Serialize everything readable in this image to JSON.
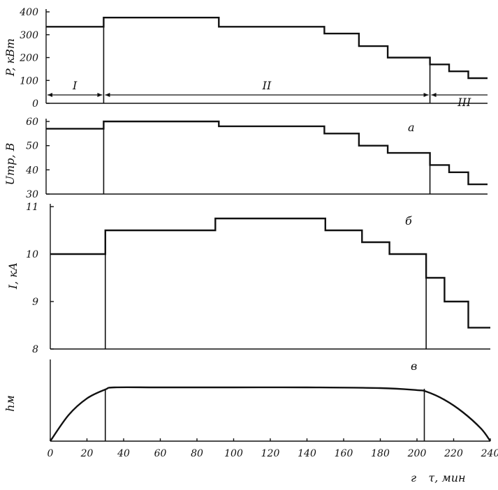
{
  "chart_data": [
    {
      "type": "line",
      "panel": "P",
      "ylabel": "P, кВт",
      "ylim": [
        0,
        400
      ],
      "yticks": [
        0,
        100,
        200,
        300,
        400
      ],
      "step_points": [
        [
          0,
          335
        ],
        [
          30,
          335
        ],
        [
          30,
          375
        ],
        [
          90,
          375
        ],
        [
          90,
          335
        ],
        [
          145,
          335
        ],
        [
          145,
          305
        ],
        [
          163,
          305
        ],
        [
          163,
          250
        ],
        [
          178,
          250
        ],
        [
          178,
          200
        ],
        [
          200,
          200
        ],
        [
          200,
          170
        ],
        [
          210,
          170
        ],
        [
          210,
          140
        ],
        [
          220,
          140
        ],
        [
          220,
          110
        ],
        [
          230,
          110
        ]
      ],
      "annotations": [
        "I",
        "II",
        "III"
      ]
    },
    {
      "type": "line",
      "panel": "U",
      "ylabel": "Uтр, В",
      "ylim": [
        30,
        60
      ],
      "yticks": [
        30,
        40,
        50,
        60
      ],
      "step_points": [
        [
          0,
          57
        ],
        [
          30,
          57
        ],
        [
          30,
          60
        ],
        [
          90,
          60
        ],
        [
          90,
          58
        ],
        [
          145,
          58
        ],
        [
          145,
          55
        ],
        [
          163,
          55
        ],
        [
          163,
          50
        ],
        [
          178,
          50
        ],
        [
          178,
          47
        ],
        [
          200,
          47
        ],
        [
          200,
          42
        ],
        [
          210,
          42
        ],
        [
          210,
          39
        ],
        [
          220,
          39
        ],
        [
          220,
          34
        ],
        [
          230,
          34
        ]
      ],
      "annotations": [
        "а"
      ]
    },
    {
      "type": "line",
      "panel": "I",
      "ylabel": "I, кА",
      "ylim": [
        8,
        11
      ],
      "yticks": [
        8,
        9,
        10,
        11
      ],
      "step_points": [
        [
          0,
          10
        ],
        [
          30,
          10
        ],
        [
          30,
          10.5
        ],
        [
          90,
          10.5
        ],
        [
          90,
          10.75
        ],
        [
          150,
          10.75
        ],
        [
          150,
          10.5
        ],
        [
          170,
          10.5
        ],
        [
          170,
          10.25
        ],
        [
          185,
          10.25
        ],
        [
          185,
          10
        ],
        [
          205,
          10
        ],
        [
          205,
          9.5
        ],
        [
          215,
          9.5
        ],
        [
          215,
          9
        ],
        [
          228,
          9
        ],
        [
          228,
          8.45
        ],
        [
          240,
          8.45
        ]
      ],
      "annotations": [
        "б"
      ]
    },
    {
      "type": "line",
      "panel": "h",
      "ylabel": "hм",
      "curve_points": [
        [
          0,
          0
        ],
        [
          10,
          0.38
        ],
        [
          20,
          0.62
        ],
        [
          30,
          0.75
        ],
        [
          35,
          0.78
        ],
        [
          60,
          0.78
        ],
        [
          100,
          0.78
        ],
        [
          140,
          0.78
        ],
        [
          180,
          0.77
        ],
        [
          200,
          0.74
        ],
        [
          205,
          0.72
        ],
        [
          215,
          0.6
        ],
        [
          225,
          0.42
        ],
        [
          235,
          0.18
        ],
        [
          240,
          0
        ]
      ],
      "xlabel": "τ, мин",
      "xticks": [
        0,
        20,
        40,
        60,
        80,
        100,
        120,
        140,
        160,
        180,
        200,
        220,
        240
      ],
      "annotations": [
        "в",
        "г"
      ]
    }
  ]
}
